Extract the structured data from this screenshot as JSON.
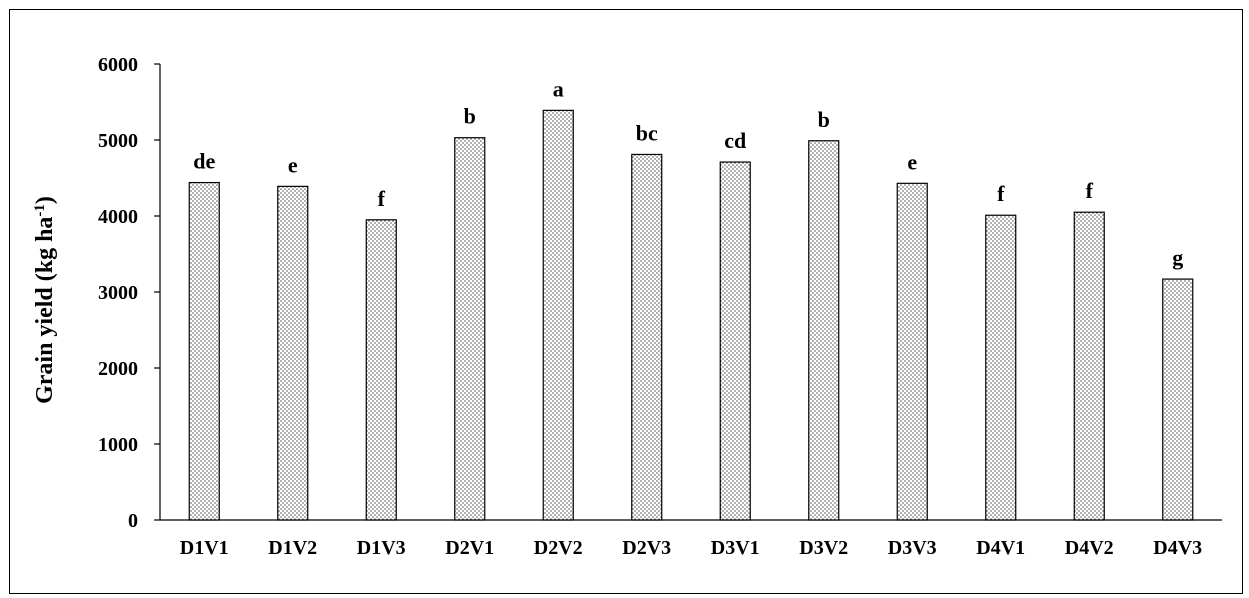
{
  "chart_data": {
    "type": "bar",
    "categories": [
      "D1V1",
      "D1V2",
      "D1V3",
      "D2V1",
      "D2V2",
      "D2V3",
      "D3V1",
      "D3V2",
      "D3V3",
      "D4V1",
      "D4V2",
      "D4V3"
    ],
    "values": [
      4440,
      4390,
      3950,
      5030,
      5390,
      4810,
      4710,
      4990,
      4430,
      4010,
      4050,
      3170
    ],
    "data_labels": [
      "de",
      "e",
      "f",
      "b",
      "a",
      "bc",
      "cd",
      "b",
      "e",
      "f",
      "f",
      "g"
    ],
    "ylabel": "Grain yield (kg ha",
    "ylabel_superscript": "-1",
    "ylabel_suffix": ")",
    "ylim": [
      0,
      6000
    ],
    "yticks": [
      0,
      1000,
      2000,
      3000,
      4000,
      5000,
      6000
    ],
    "ytick_labels": [
      "0",
      "1000",
      "2000",
      "3000",
      "4000",
      "5000",
      "6000"
    ],
    "grid": false,
    "legend": "none",
    "bar_fill": "dotted-pattern",
    "colors": {
      "bar_edge": "#000000",
      "bar_dots": "#555555",
      "axis": "#000000"
    }
  }
}
